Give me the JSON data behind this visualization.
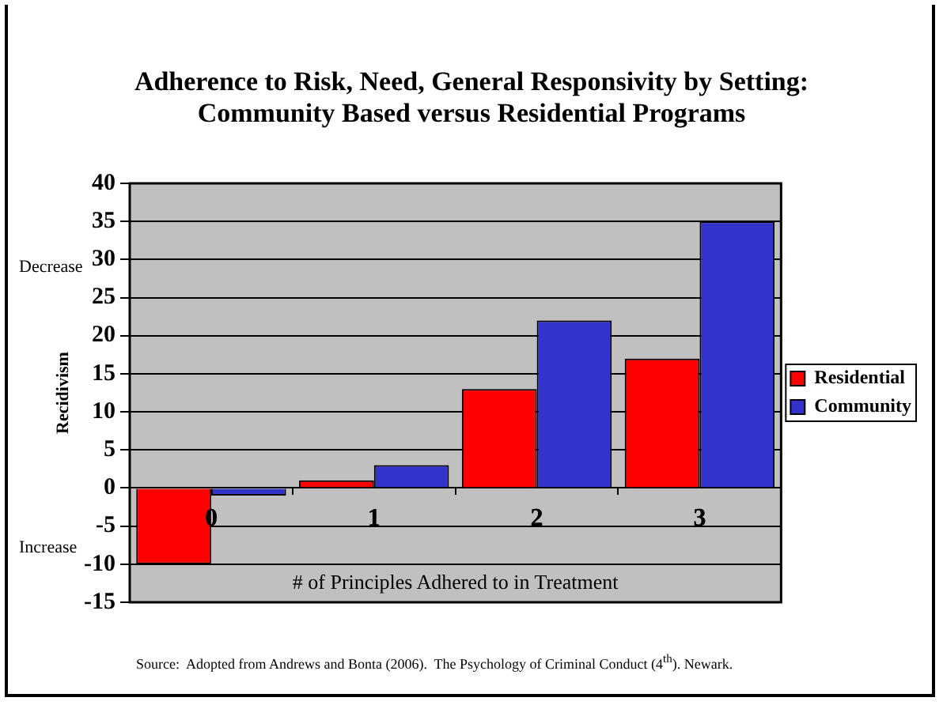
{
  "chart_data": {
    "type": "bar",
    "title": "Adherence to Risk, Need, General Responsivity by Setting: Community Based versus Residential Programs",
    "xlabel": "# of Principles Adhered to in Treatment",
    "ylabel": "Recidivism",
    "categories": [
      "0",
      "1",
      "2",
      "3"
    ],
    "series": [
      {
        "name": "Residential",
        "color": "#ff0000",
        "values": [
          -10,
          1,
          13,
          17
        ]
      },
      {
        "name": "Community",
        "color": "#3333cc",
        "values": [
          -1,
          3,
          22,
          35
        ]
      }
    ],
    "ylim": [
      -15,
      40
    ],
    "yticks": [
      -15,
      -10,
      -5,
      0,
      5,
      10,
      15,
      20,
      25,
      30,
      35,
      40
    ],
    "grid": "y",
    "legend": "right",
    "annotations": [
      "Decrease",
      "Increase",
      "Source:  Adopted from Andrews and Bonta (2006).  The Psychology of Criminal Conduct (4$^{th}$). Newark."
    ]
  }
}
